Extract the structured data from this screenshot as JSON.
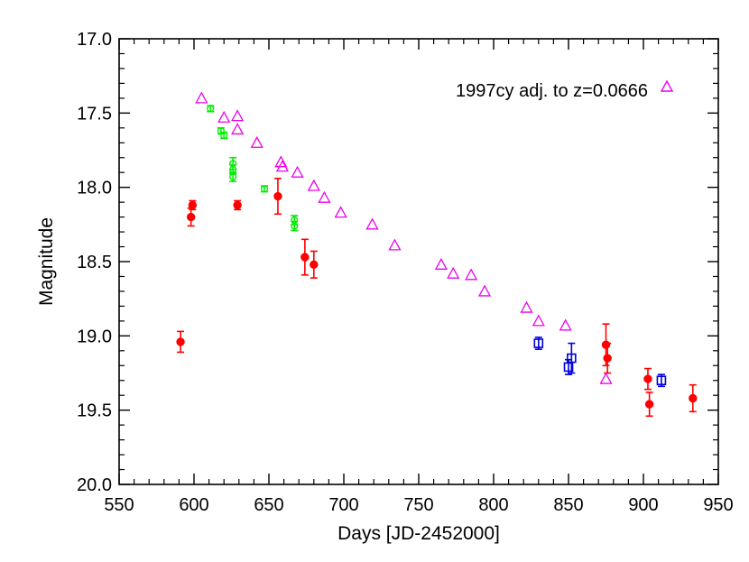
{
  "chart_data": {
    "type": "scatter",
    "xlabel": "Days [JD-2452000]",
    "ylabel": "Magnitude",
    "xlim": [
      550,
      950
    ],
    "ylim": [
      20.0,
      17.0
    ],
    "y_inverted": true,
    "x_ticks": [
      550,
      600,
      650,
      700,
      750,
      800,
      850,
      900,
      950
    ],
    "x_tick_labels": [
      "550",
      "600",
      "650",
      "700",
      "750",
      "800",
      "850",
      "900",
      "950"
    ],
    "y_ticks": [
      17.0,
      17.5,
      18.0,
      18.5,
      19.0,
      19.5,
      20.0
    ],
    "y_tick_labels": [
      "17.0",
      "17.5",
      "18.0",
      "18.5",
      "19.0",
      "19.5",
      "20.0"
    ],
    "grid": false,
    "legend_position": "top-right",
    "legend_label": "1997cy adj. to z=0.0666",
    "series": [
      {
        "color": "#ff0000",
        "marker": "filled-circle",
        "error_bars": true,
        "points": [
          {
            "x": 591,
            "y": 19.04,
            "err": 0.07
          },
          {
            "x": 598,
            "y": 18.2,
            "err": 0.06
          },
          {
            "x": 599,
            "y": 18.12,
            "err": 0.03
          },
          {
            "x": 629,
            "y": 18.12,
            "err": 0.03
          },
          {
            "x": 656,
            "y": 18.06,
            "err": 0.12
          },
          {
            "x": 674,
            "y": 18.47,
            "err": 0.12
          },
          {
            "x": 680,
            "y": 18.52,
            "err": 0.09
          },
          {
            "x": 875,
            "y": 19.06,
            "err": 0.14
          },
          {
            "x": 876,
            "y": 19.15,
            "err": 0.1
          },
          {
            "x": 903,
            "y": 19.29,
            "err": 0.07
          },
          {
            "x": 904,
            "y": 19.46,
            "err": 0.08
          },
          {
            "x": 933,
            "y": 19.42,
            "err": 0.09
          }
        ]
      },
      {
        "color": "#00ee00",
        "marker": "open-circle",
        "error_bars": true,
        "points": [
          {
            "x": 611,
            "y": 17.47,
            "err": 0.02
          },
          {
            "x": 618,
            "y": 17.62,
            "err": 0.02
          },
          {
            "x": 620,
            "y": 17.65,
            "err": 0.02
          },
          {
            "x": 626,
            "y": 17.84,
            "err": 0.04
          },
          {
            "x": 626,
            "y": 17.88,
            "err": 0.03
          },
          {
            "x": 626,
            "y": 17.93,
            "err": 0.03
          },
          {
            "x": 647,
            "y": 18.01,
            "err": 0.02
          },
          {
            "x": 667,
            "y": 18.22,
            "err": 0.03
          },
          {
            "x": 667,
            "y": 18.26,
            "err": 0.03
          }
        ]
      },
      {
        "color": "#0000dd",
        "marker": "open-square",
        "error_bars": true,
        "points": [
          {
            "x": 830,
            "y": 19.05,
            "err": 0.04
          },
          {
            "x": 850,
            "y": 19.21,
            "err": 0.05
          },
          {
            "x": 852,
            "y": 19.15,
            "err": 0.1
          },
          {
            "x": 912,
            "y": 19.3,
            "err": 0.04
          }
        ]
      },
      {
        "name": "1997cy adj. to z=0.0666",
        "color": "#ee00ee",
        "marker": "open-triangle",
        "error_bars": false,
        "points": [
          {
            "x": 605,
            "y": 17.4
          },
          {
            "x": 620,
            "y": 17.53
          },
          {
            "x": 629,
            "y": 17.52
          },
          {
            "x": 629,
            "y": 17.61
          },
          {
            "x": 642,
            "y": 17.7
          },
          {
            "x": 658,
            "y": 17.83
          },
          {
            "x": 659,
            "y": 17.86
          },
          {
            "x": 669,
            "y": 17.9
          },
          {
            "x": 680,
            "y": 17.99
          },
          {
            "x": 687,
            "y": 18.07
          },
          {
            "x": 698,
            "y": 18.17
          },
          {
            "x": 719,
            "y": 18.25
          },
          {
            "x": 734,
            "y": 18.39
          },
          {
            "x": 765,
            "y": 18.52
          },
          {
            "x": 773,
            "y": 18.58
          },
          {
            "x": 785,
            "y": 18.59
          },
          {
            "x": 794,
            "y": 18.7
          },
          {
            "x": 822,
            "y": 18.81
          },
          {
            "x": 830,
            "y": 18.9
          },
          {
            "x": 848,
            "y": 18.93
          },
          {
            "x": 875,
            "y": 19.29
          }
        ]
      }
    ]
  }
}
